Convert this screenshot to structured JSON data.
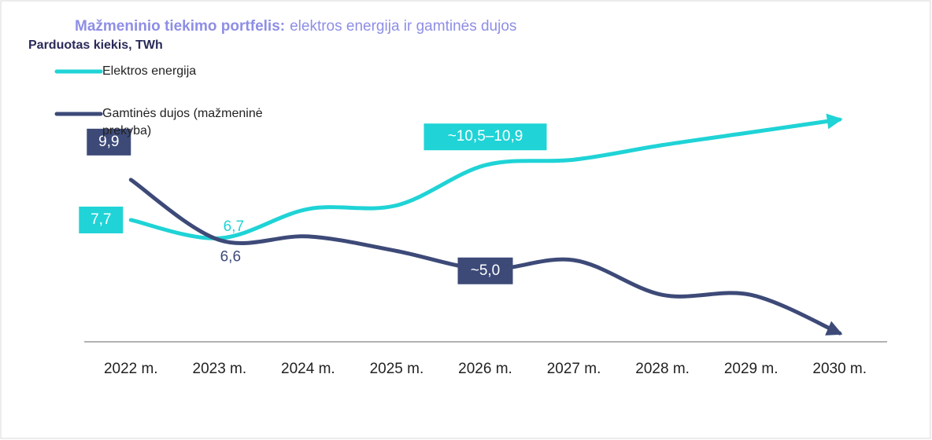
{
  "chart_data": {
    "type": "line",
    "title": "Mažmeninio tiekimo portfelis:",
    "subtitle": "elektros energija ir gamtinės dujos",
    "ylabel": "Parduotas kiekis, TWh",
    "categories": [
      "2022 m.",
      "2023 m.",
      "2024 m.",
      "2025 m.",
      "2026 m.",
      "2027 m.",
      "2028 m.",
      "2029 m.",
      "2030 m."
    ],
    "ylim": [
      0,
      14
    ],
    "series": [
      {
        "name": "Elektros energija",
        "color": "#1fd3d6",
        "values": [
          7.7,
          6.7,
          8.3,
          8.5,
          10.7,
          11.0,
          11.8,
          12.5,
          13.2
        ],
        "value_labels": [
          "7,7",
          "6,7",
          null,
          null,
          "~10,5–10,9",
          null,
          null,
          null,
          null
        ]
      },
      {
        "name": "Gamtinės dujos (mažmeninė prekyba)",
        "color": "#3d4a78",
        "values": [
          9.9,
          6.6,
          6.8,
          6.0,
          5.0,
          5.5,
          3.6,
          3.6,
          1.5
        ],
        "value_labels": [
          "9,9",
          "6,6",
          null,
          null,
          "~5,0",
          null,
          null,
          null,
          null
        ]
      }
    ]
  }
}
